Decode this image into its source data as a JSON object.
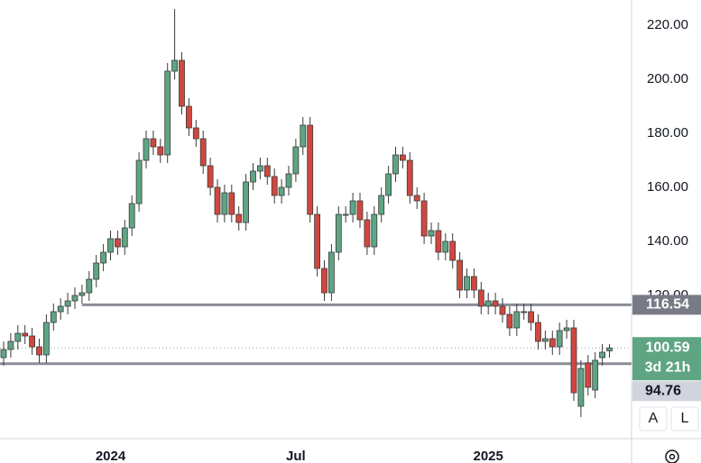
{
  "chart_data": {
    "type": "candlestick",
    "open": [
      97,
      100,
      103,
      106,
      105,
      101,
      98,
      110,
      114,
      116,
      118,
      120,
      121,
      126,
      132,
      136,
      141,
      138,
      145,
      154,
      170,
      178,
      175,
      172,
      203,
      207,
      190,
      182,
      178,
      168,
      160,
      150,
      158,
      150,
      147,
      162,
      166,
      168,
      164,
      157,
      160,
      165,
      175,
      183,
      150,
      130,
      121,
      136,
      150,
      150,
      155,
      148,
      138,
      150,
      157,
      165,
      172,
      170,
      157,
      155,
      142,
      144,
      136,
      140,
      133,
      122,
      127,
      122,
      116,
      118,
      116,
      113,
      108,
      114,
      114,
      110,
      103,
      104,
      101,
      107,
      108,
      79,
      95,
      85,
      97,
      99.5
    ],
    "high": [
      103,
      106,
      109,
      109,
      108,
      104,
      113,
      117,
      119,
      121,
      123,
      124,
      129,
      135,
      139,
      144,
      144,
      148,
      157,
      173,
      181,
      181,
      178,
      206,
      226,
      210,
      193,
      185,
      181,
      171,
      163,
      161,
      161,
      153,
      165,
      169,
      171,
      171,
      167,
      163,
      168,
      178,
      186,
      186,
      153,
      133,
      139,
      153,
      153,
      158,
      158,
      151,
      153,
      160,
      168,
      175,
      175,
      173,
      160,
      158,
      147,
      147,
      143,
      143,
      136,
      130,
      130,
      125,
      121,
      121,
      119,
      116,
      117,
      117,
      117,
      113,
      107,
      107,
      110,
      111,
      111,
      96,
      98,
      99,
      102,
      102
    ],
    "low": [
      94,
      97,
      100,
      102,
      98,
      95,
      95,
      107,
      111,
      113,
      115,
      117,
      118,
      123,
      129,
      133,
      135,
      135,
      142,
      151,
      167,
      172,
      169,
      169,
      200,
      187,
      179,
      175,
      165,
      157,
      147,
      147,
      147,
      144,
      144,
      159,
      163,
      161,
      154,
      154,
      157,
      162,
      172,
      147,
      127,
      118,
      118,
      133,
      147,
      147,
      145,
      135,
      135,
      147,
      154,
      162,
      167,
      154,
      152,
      139,
      139,
      133,
      133,
      130,
      119,
      119,
      119,
      113,
      113,
      113,
      110,
      105,
      105,
      111,
      107,
      100,
      100,
      98,
      98,
      104,
      81,
      75,
      83,
      82,
      94,
      97
    ],
    "close": [
      100,
      103,
      106,
      105,
      101,
      98,
      110,
      114,
      116,
      118,
      120,
      121,
      126,
      132,
      136,
      141,
      138,
      145,
      154,
      170,
      178,
      175,
      172,
      203,
      207,
      190,
      182,
      178,
      168,
      160,
      150,
      158,
      150,
      147,
      162,
      166,
      168,
      164,
      157,
      160,
      165,
      175,
      183,
      150,
      130,
      121,
      136,
      150,
      150,
      155,
      148,
      138,
      150,
      157,
      165,
      172,
      170,
      157,
      155,
      142,
      144,
      136,
      140,
      133,
      122,
      127,
      122,
      116,
      118,
      116,
      113,
      108,
      114,
      114,
      110,
      103,
      104,
      101,
      107,
      108,
      84,
      93,
      86,
      96,
      99,
      100.59
    ],
    "up_color": "#5fa584",
    "down_color": "#d1473f",
    "ylim": [
      67,
      229.33
    ],
    "yticks": [
      {
        "value": 120,
        "label": "120.00"
      },
      {
        "value": 140,
        "label": "140.00"
      },
      {
        "value": 160,
        "label": "160.00"
      },
      {
        "value": 180,
        "label": "180.00"
      },
      {
        "value": 200,
        "label": "200.00"
      },
      {
        "value": 220,
        "label": "220.00"
      }
    ],
    "xticks": [
      {
        "value": 15,
        "label": "2024"
      },
      {
        "value": 41,
        "label": "Jul"
      },
      {
        "value": 68,
        "label": "2025"
      }
    ],
    "levels": [
      116.54,
      94.76
    ],
    "countdown": "3d 21h",
    "buttons": [
      "A",
      "L"
    ]
  }
}
